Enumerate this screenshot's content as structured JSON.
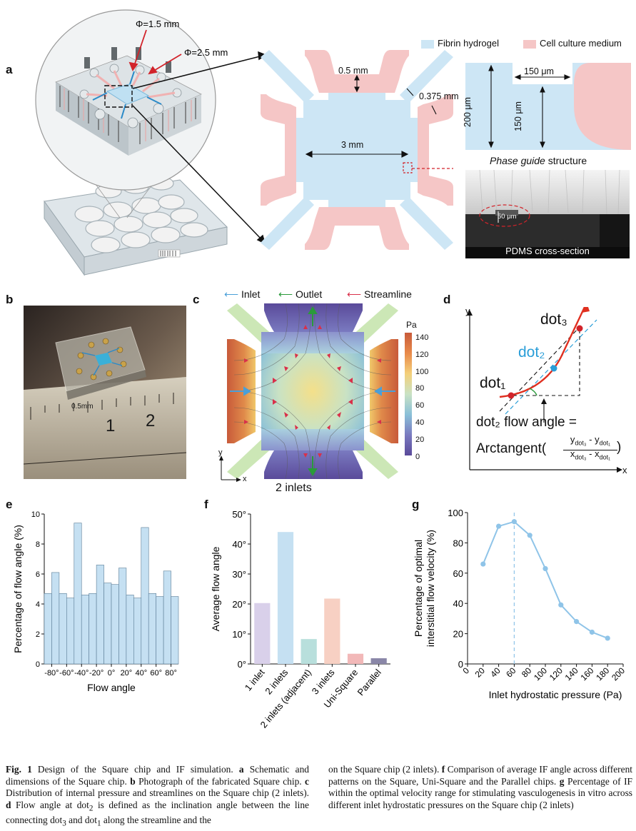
{
  "panels": {
    "a": "a",
    "b": "b",
    "c": "c",
    "d": "d",
    "e": "e",
    "f": "f",
    "g": "g"
  },
  "panel_a": {
    "phi_small": "Φ=1.5 mm",
    "phi_large": "Φ=2.5 mm",
    "legend_fibrin": "Fibrin hydrogel",
    "legend_medium": "Cell culture medium",
    "dim_05": "0.5 mm",
    "dim_0375": "0.375 mm",
    "dim_3": "3 mm",
    "dim_150_top": "150 μm",
    "dim_200": "200 μm",
    "dim_150_side": "150 μm",
    "phase_guide_italic": "Phase guide",
    "phase_guide_rest": " structure",
    "sem_scale": "50 μm",
    "sem_label": "PDMS cross-section",
    "colors": {
      "fibrin": "#cde6f5",
      "medium": "#f5c6c6"
    }
  },
  "panel_b": {
    "ruler_unit": "0.5mm",
    "ruler_1": "1",
    "ruler_2": "2"
  },
  "panel_c": {
    "legend_inlet": "Inlet",
    "legend_outlet": "Outlet",
    "legend_streamline": "Streamline",
    "colorbar_unit": "Pa",
    "colorbar_ticks": [
      "140",
      "120",
      "100",
      "80",
      "60",
      "40",
      "20",
      "0"
    ],
    "axis_y": "y",
    "axis_x": "x",
    "subtitle": "2 inlets",
    "colors": {
      "inlet": "#4a9fd8",
      "outlet": "#2a9a3a",
      "streamline": "#d9304a"
    }
  },
  "panel_d": {
    "axis_y": "y",
    "axis_x": "x",
    "dot1": "dot₁",
    "dot2": "dot₂",
    "dot3": "dot₃",
    "formula_line1": "dot₂ flow angle =",
    "formula_arctan": "Arctangent(",
    "formula_num": "y_dot3 - y_dot1",
    "formula_num_a": "y",
    "formula_num_a_sub": "dot₃",
    "formula_num_b": "- y",
    "formula_num_b_sub": "dot₁",
    "formula_den_a": "x",
    "formula_den_a_sub": "dot₃",
    "formula_den_b": "- x",
    "formula_den_b_sub": "dot₁",
    "formula_close": ")",
    "colors": {
      "curve": "#e03020",
      "dot2": "#2a9ed8",
      "angle": "#2a9a3a"
    }
  },
  "chart_data": [
    {
      "id": "e",
      "type": "bar",
      "xlabel": "Flow angle",
      "ylabel": "Percentage of flow angle (%)",
      "ylim": [
        0,
        10
      ],
      "yticks": [
        "0",
        "2",
        "4",
        "6",
        "8",
        "10"
      ],
      "xticks": [
        "-80°",
        "-60°",
        "-40°",
        "-20°",
        "0°",
        "20°",
        "40°",
        "60°",
        "80°"
      ],
      "bin_centers": [
        -85,
        -75,
        -65,
        -55,
        -45,
        -35,
        -25,
        -15,
        -5,
        5,
        15,
        25,
        35,
        45,
        55,
        65,
        75,
        85
      ],
      "values": [
        4.7,
        6.1,
        4.7,
        4.4,
        9.4,
        4.6,
        4.7,
        6.6,
        5.4,
        5.3,
        6.4,
        4.6,
        4.4,
        9.1,
        4.7,
        4.5,
        6.2,
        4.5
      ],
      "color": "#c5e0f2"
    },
    {
      "id": "f",
      "type": "bar",
      "ylabel": "Average flow angle",
      "ylim": [
        0,
        50
      ],
      "yticks": [
        "0°",
        "10°",
        "20°",
        "30°",
        "40°",
        "50°"
      ],
      "categories": [
        "1 inlet",
        "2 inlets",
        "2 inlets (adjacent)",
        "3 inlets",
        "Uni-Square",
        "Parallel"
      ],
      "values": [
        20.3,
        44.0,
        8.3,
        21.8,
        3.4,
        1.9
      ],
      "colors": [
        "#d9d0ea",
        "#c5e0f2",
        "#b8dfdc",
        "#f7d0c3",
        "#f2b8b8",
        "#8a87a8"
      ]
    },
    {
      "id": "g",
      "type": "line",
      "xlabel": "Inlet hydrostatic pressure (Pa)",
      "ylabel": "Percentage of optimal interstitial flow velocity (%)",
      "ylabel_line1": "Percentage of optimal",
      "ylabel_line2": "interstitial flow velocity (%)",
      "xlim": [
        0,
        200
      ],
      "ylim": [
        0,
        100
      ],
      "xticks": [
        "0",
        "20",
        "40",
        "60",
        "80",
        "100",
        "120",
        "140",
        "160",
        "180",
        "200"
      ],
      "yticks": [
        "0",
        "20",
        "40",
        "60",
        "80",
        "100"
      ],
      "x": [
        20,
        40,
        60,
        80,
        100,
        120,
        140,
        160,
        180
      ],
      "y": [
        66,
        91,
        94,
        85,
        63,
        39,
        28,
        21,
        17
      ],
      "optimum_line_x": 60,
      "color": "#8fc4e8"
    }
  ],
  "caption": {
    "fig": "Fig. 1",
    "col1": [
      " Design of the Square chip and IF simulation. ",
      "a",
      " Schematic and dimensions of the Square chip. ",
      "b",
      " Photograph of the fabricated Square chip. ",
      "c",
      " Distribution of internal pressure and streamlines on the Square chip (2 inlets). ",
      "d",
      " Flow angle at dot",
      "2",
      " is defined as the inclination angle between the line connecting dot",
      "3",
      " and dot",
      "1",
      " along the streamline and the"
    ],
    "col2": [
      "on the Square chip (2 inlets). ",
      "f",
      " Comparison of average IF angle across different patterns on the Square, Uni-Square and the Parallel chips. ",
      "g",
      " Percentage of IF within the optimal velocity range for stimulating vasculogenesis in vitro across different inlet hydrostatic pressures on the Square chip (2 inlets)"
    ]
  }
}
